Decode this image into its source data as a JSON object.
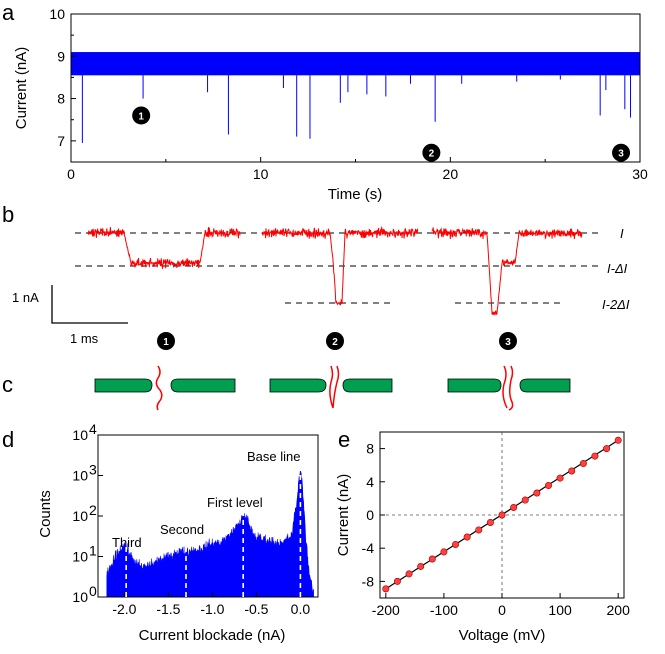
{
  "figure": {
    "panels": [
      "a",
      "b",
      "c",
      "d",
      "e"
    ]
  },
  "chart_data": [
    {
      "panel": "a",
      "type": "line",
      "title": "",
      "xlabel": "Time (s)",
      "ylabel": "Current (nA)",
      "xlim": [
        0,
        30
      ],
      "ylim": [
        6.5,
        10
      ],
      "xticks": [
        0,
        10,
        20,
        30
      ],
      "yticks": [
        7,
        8,
        9,
        10
      ],
      "baseline_band": [
        8.55,
        9.1
      ],
      "color": "#0000ff",
      "spike_events": [
        {
          "t": 0.6,
          "min": 6.95
        },
        {
          "t": 3.8,
          "min": 8.0
        },
        {
          "t": 7.2,
          "min": 8.15
        },
        {
          "t": 8.3,
          "min": 7.15
        },
        {
          "t": 11.2,
          "min": 8.25
        },
        {
          "t": 11.9,
          "min": 7.1
        },
        {
          "t": 12.6,
          "min": 7.05
        },
        {
          "t": 14.2,
          "min": 7.9
        },
        {
          "t": 14.6,
          "min": 8.15
        },
        {
          "t": 15.6,
          "min": 8.1
        },
        {
          "t": 16.6,
          "min": 8.05
        },
        {
          "t": 17.9,
          "min": 8.35
        },
        {
          "t": 19.2,
          "min": 7.45
        },
        {
          "t": 20.6,
          "min": 8.35
        },
        {
          "t": 23.5,
          "min": 8.4
        },
        {
          "t": 25.8,
          "min": 8.45
        },
        {
          "t": 27.9,
          "min": 7.6
        },
        {
          "t": 28.2,
          "min": 8.2
        },
        {
          "t": 29.2,
          "min": 7.75
        },
        {
          "t": 29.5,
          "min": 7.55
        }
      ],
      "event_markers": [
        {
          "label": "1",
          "t": 3.7,
          "y": 7.6
        },
        {
          "label": "2",
          "t": 19.0,
          "y": 6.72
        },
        {
          "label": "3",
          "t": 29.0,
          "y": 6.72
        }
      ]
    },
    {
      "panel": "b",
      "type": "line",
      "title": "",
      "color": "#ff0000",
      "level_labels": [
        "I",
        "I-ΔI",
        "I-2ΔI"
      ],
      "scale_bar_current": "1 nA",
      "scale_bar_time": "1 ms",
      "events": [
        {
          "label": "1",
          "description": "single-level blockade, long dwell"
        },
        {
          "label": "2",
          "description": "two-level blockade"
        },
        {
          "label": "3",
          "description": "two-level then first-level blockade"
        }
      ]
    },
    {
      "panel": "c",
      "type": "diagram",
      "title": "",
      "schematics": [
        "1",
        "2",
        "3"
      ],
      "pore_color": "#00a050",
      "strand_color": "#ff0000"
    },
    {
      "panel": "d",
      "type": "area",
      "title": "",
      "xlabel": "Current blockade (nA)",
      "ylabel": "Counts",
      "xlim": [
        -2.3,
        0.2
      ],
      "ylim_log10": [
        0,
        4
      ],
      "yscale": "log",
      "xticks": [
        -2.0,
        -1.5,
        -1.0,
        -0.5,
        0.0
      ],
      "xtick_labels": [
        "-2.0",
        "-1.5",
        "-1.0",
        "-0.5",
        "0.0"
      ],
      "ytick_labels": [
        "10",
        "10",
        "10",
        "10",
        "10"
      ],
      "ytick_exponents": [
        "0",
        "1",
        "2",
        "3",
        "4"
      ],
      "color": "#0000ff",
      "histogram_envelope_log10": {
        "x": [
          -2.2,
          -2.1,
          -2.0,
          -1.9,
          -1.8,
          -1.7,
          -1.6,
          -1.5,
          -1.4,
          -1.3,
          -1.2,
          -1.1,
          -1.0,
          -0.9,
          -0.8,
          -0.7,
          -0.65,
          -0.6,
          -0.55,
          -0.5,
          -0.4,
          -0.3,
          -0.2,
          -0.1,
          -0.05,
          0.0,
          0.03,
          0.06,
          0.1,
          0.15
        ],
        "y": [
          0.5,
          1.0,
          1.3,
          0.9,
          0.7,
          0.8,
          0.9,
          0.95,
          1.1,
          1.1,
          1.15,
          1.2,
          1.3,
          1.35,
          1.5,
          1.8,
          1.95,
          1.9,
          1.6,
          1.45,
          1.4,
          1.35,
          1.3,
          1.5,
          2.2,
          3.15,
          2.6,
          1.5,
          0.6,
          0.0
        ]
      },
      "peaks": [
        {
          "label": "Base line",
          "x": 0.0
        },
        {
          "label": "First level",
          "x": -0.65
        },
        {
          "label": "Second",
          "x": -1.3
        },
        {
          "label": "Third",
          "x": -1.98
        }
      ]
    },
    {
      "panel": "e",
      "type": "scatter",
      "title": "",
      "xlabel": "Voltage (mV)",
      "ylabel": "Current (nA)",
      "xlim": [
        -210,
        210
      ],
      "ylim": [
        -10,
        10
      ],
      "xticks": [
        -200,
        -100,
        0,
        100,
        200
      ],
      "yticks": [
        -8,
        -4,
        0,
        4,
        8
      ],
      "ytick_labels": [
        "-8",
        "-4",
        "0",
        "4",
        "8"
      ],
      "marker_color": "#ff4040",
      "fit_color": "#000000",
      "x": [
        -200,
        -180,
        -160,
        -140,
        -120,
        -100,
        -80,
        -60,
        -40,
        -20,
        0,
        20,
        40,
        60,
        80,
        100,
        120,
        140,
        160,
        180,
        200
      ],
      "y": [
        -8.9,
        -8.0,
        -7.1,
        -6.2,
        -5.3,
        -4.45,
        -3.55,
        -2.65,
        -1.8,
        -0.9,
        0.0,
        0.9,
        1.8,
        2.65,
        3.55,
        4.45,
        5.3,
        6.2,
        7.1,
        8.0,
        9.0
      ]
    }
  ]
}
